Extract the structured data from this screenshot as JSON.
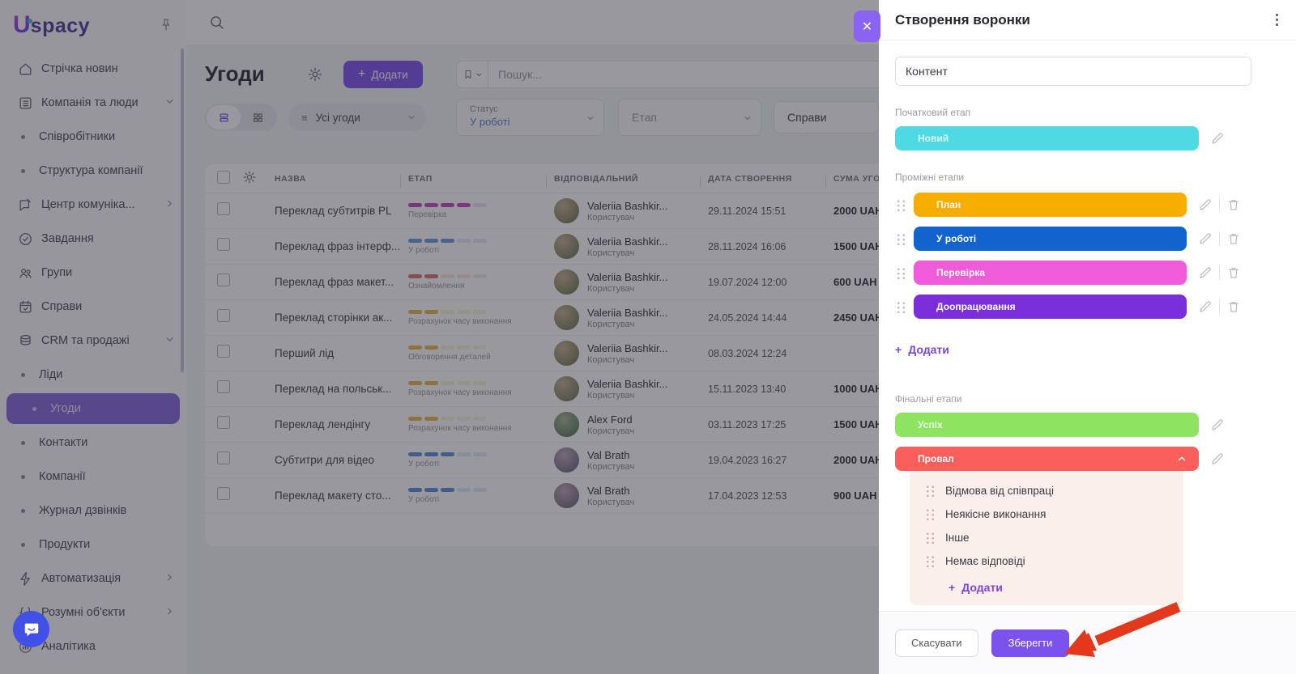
{
  "brand": {
    "letter": "U",
    "rest": "spacy"
  },
  "sidebar": {
    "items": [
      {
        "label": "Стрічка новин"
      },
      {
        "label": "Компанія та люди"
      },
      {
        "label": "Співробітники"
      },
      {
        "label": "Структура компанії"
      },
      {
        "label": "Центр комуніка..."
      },
      {
        "label": "Завдання"
      },
      {
        "label": "Групи"
      },
      {
        "label": "Справи"
      },
      {
        "label": "CRM та продажі"
      },
      {
        "label": "Ліди"
      },
      {
        "label": "Угоди"
      },
      {
        "label": "Контакти"
      },
      {
        "label": "Компанії"
      },
      {
        "label": "Журнал дзвінків"
      },
      {
        "label": "Продукти"
      },
      {
        "label": "Автоматизація"
      },
      {
        "label": "Розумні об'єкти"
      },
      {
        "label": "Аналітика"
      }
    ]
  },
  "header": {
    "title": "Угоди",
    "add_label": "Додати",
    "plus": "+",
    "search_placeholder": "Пошук..."
  },
  "filters": {
    "saved_filter": "Усі угоди",
    "status_label": "Статус",
    "status_value": "У роботі",
    "stage_placeholder": "Етап",
    "tasks_label": "Справи"
  },
  "table": {
    "columns": [
      "НАЗВА",
      "ЕТАП",
      "ВІДПОВІДАЛЬНИЙ",
      "ДАТА СТВОРЕННЯ",
      "СУМА УГОДИ"
    ],
    "rows": [
      {
        "name": "Переклад субтитрів PL",
        "stage_label": "Перевірка",
        "stage_color": "#C24BBE",
        "stage_filled": 4,
        "owner": "Valeriia Bashkir...",
        "owner_role": "Користувач",
        "avatar": 0,
        "date": "29.11.2024 15:51",
        "sum": "2000 UAH"
      },
      {
        "name": "Переклад фраз інтерф...",
        "stage_label": "У роботі",
        "stage_color": "#6B9BE0",
        "stage_filled": 3,
        "owner": "Valeriia Bashkir...",
        "owner_role": "Користувач",
        "avatar": 0,
        "date": "28.11.2024 16:06",
        "sum": "1500 UAH"
      },
      {
        "name": "Переклад фраз макет...",
        "stage_label": "Ознайомлення",
        "stage_color": "#D9756D",
        "stage_filled": 2,
        "owner": "Valeriia Bashkir...",
        "owner_role": "Користувач",
        "avatar": 0,
        "date": "19.07.2024 12:00",
        "sum": "600 UAH"
      },
      {
        "name": "Переклад сторінки ак...",
        "stage_label": "Розрахунок часу виконання",
        "stage_color": "#E3BA4E",
        "stage_filled": 2,
        "owner": "Valeriia Bashkir...",
        "owner_role": "Користувач",
        "avatar": 0,
        "date": "24.05.2024 14:44",
        "sum": "2450 UAH"
      },
      {
        "name": "Перший лід",
        "stage_label": "Обговорення деталей",
        "stage_color": "#E3BA4E",
        "stage_filled": 2,
        "owner": "Valeriia Bashkir...",
        "owner_role": "Користувач",
        "avatar": 0,
        "date": "08.03.2024 12:24",
        "sum": ""
      },
      {
        "name": "Переклад на польськ...",
        "stage_label": "Розрахунок часу виконання",
        "stage_color": "#E3BA4E",
        "stage_filled": 2,
        "owner": "Valeriia Bashkir...",
        "owner_role": "Користувач",
        "avatar": 0,
        "date": "15.11.2023 13:40",
        "sum": "1000 UAH"
      },
      {
        "name": "Переклад лендінгу",
        "stage_label": "Розрахунок часу виконання",
        "stage_color": "#E3BA4E",
        "stage_filled": 2,
        "owner": "Alex Ford",
        "owner_role": "Користувач",
        "avatar": 1,
        "date": "03.11.2023 17:25",
        "sum": "1500 UAH"
      },
      {
        "name": "Субтитри для відео",
        "stage_label": "У роботі",
        "stage_color": "#5B8FDE",
        "stage_filled": 3,
        "owner": "Val Brath",
        "owner_role": "Користувач",
        "avatar": 2,
        "date": "19.04.2023 16:27",
        "sum": "2000 UAH"
      },
      {
        "name": "Переклад макету сто...",
        "stage_label": "У роботі",
        "stage_color": "#5B8FDE",
        "stage_filled": 3,
        "owner": "Val Brath",
        "owner_role": "Користувач",
        "avatar": 2,
        "date": "17.04.2023 12:53",
        "sum": "900 UAH"
      }
    ]
  },
  "modal": {
    "title": "Створення воронки",
    "name_value": "Контент",
    "initial_label": "Початковий етап",
    "initial_stage": {
      "label": "Новий",
      "color": "#4FD9E2"
    },
    "middle_label": "Проміжні етапи",
    "middle_stages": [
      {
        "label": "План",
        "color": "#F7AC00"
      },
      {
        "label": "У роботі",
        "color": "#1163CF"
      },
      {
        "label": "Перевірка",
        "color": "#EF5BD8"
      },
      {
        "label": "Доопрацювання",
        "color": "#7B2FD8"
      }
    ],
    "add_label": "Додати",
    "plus": "+",
    "final_label": "Фінальні етапи",
    "success_stage": {
      "label": "Успіх",
      "color": "#8EE360"
    },
    "fail_stage": {
      "label": "Провал",
      "color": "#F9605C"
    },
    "fail_substages": [
      {
        "label": "Відмова від співпраці"
      },
      {
        "label": "Неякісне виконання"
      },
      {
        "label": "Інше"
      },
      {
        "label": "Немає відповіді"
      }
    ],
    "cancel_label": "Скасувати",
    "save_label": "Зберегти"
  }
}
